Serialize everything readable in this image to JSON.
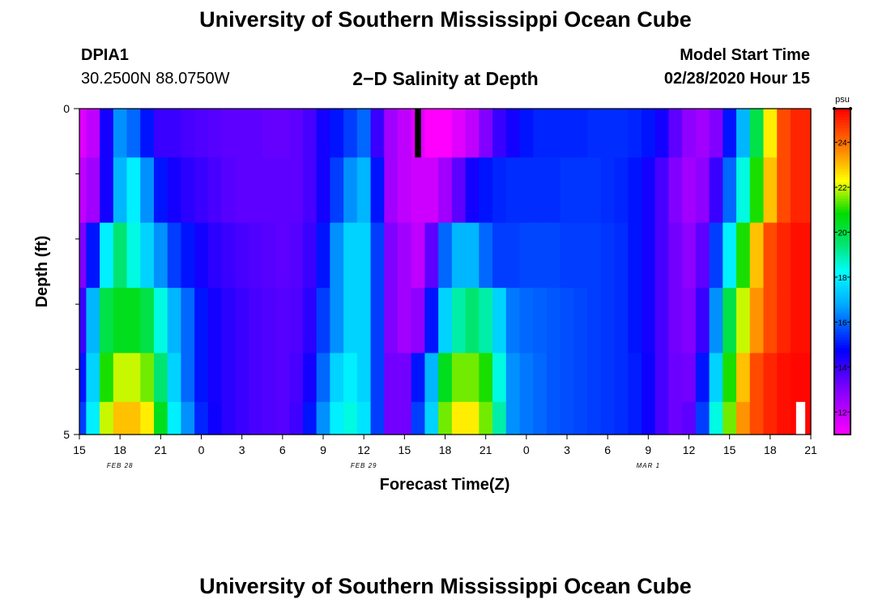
{
  "page": {
    "title_top": "University of Southern Mississippi Ocean Cube",
    "title_bottom": "University of Southern Mississippi Ocean Cube",
    "station_id": "DPIA1",
    "coords": "30.2500N 88.0750W",
    "plot_title": "2−D Salinity at Depth",
    "model_label": "Model Start Time",
    "model_time": "02/28/2020 Hour 15"
  },
  "chart_data": {
    "type": "heatmap",
    "xlabel": "Forecast Time(Z)",
    "ylabel": "Depth (ft)",
    "x_ticks": [
      "15",
      "18",
      "21",
      "0",
      "3",
      "6",
      "9",
      "12",
      "15",
      "18",
      "21",
      "0",
      "3",
      "6",
      "9",
      "12",
      "15",
      "18",
      "21"
    ],
    "date_labels": [
      {
        "text": "FEB 28",
        "at_tick": 1
      },
      {
        "text": "FEB 29",
        "at_tick": 7
      },
      {
        "text": "MAR 1",
        "at_tick": 14
      }
    ],
    "y_ticks": [
      "0",
      "5"
    ],
    "y_range": [
      0,
      5
    ],
    "x_range_hours": [
      0,
      54
    ],
    "colorbar": {
      "unit": "psu",
      "min": 11,
      "max": 25.5,
      "ticks": [
        12,
        14,
        16,
        18,
        20,
        22,
        24
      ]
    },
    "depth_rows": [
      0.25,
      1.25,
      2.25,
      3.25,
      4.25,
      4.75
    ],
    "column_hours": [
      0,
      1,
      2,
      3,
      4,
      5,
      6,
      7,
      8,
      9,
      10,
      11,
      12,
      13,
      14,
      15,
      16,
      17,
      18,
      19,
      20,
      21,
      22,
      23,
      24,
      25,
      26,
      27,
      28,
      29,
      30,
      31,
      32,
      33,
      34,
      35,
      36,
      37,
      38,
      39,
      40,
      41,
      42,
      43,
      44,
      45,
      46,
      47,
      48,
      49,
      50,
      51,
      52,
      53
    ],
    "salinity_psu": [
      [
        11.5,
        12,
        14.5,
        16.5,
        16,
        15,
        14,
        14,
        13.8,
        13.7,
        13.6,
        13.5,
        13.5,
        13.5,
        13.4,
        13.4,
        13.5,
        13.8,
        14.5,
        15,
        15.5,
        16,
        14,
        12.5,
        12,
        11.5,
        11,
        11,
        11.5,
        12,
        13,
        14,
        14.5,
        15,
        15.2,
        15.2,
        15.2,
        15.2,
        15.3,
        15.3,
        15.3,
        15.2,
        15,
        14.5,
        13.5,
        12.8,
        12.5,
        13,
        15,
        17,
        20,
        22.5,
        24.5,
        25
      ],
      [
        12,
        12.5,
        14.5,
        17,
        18,
        16.5,
        15,
        14.5,
        14.2,
        14,
        13.8,
        13.6,
        13.5,
        13.5,
        13.5,
        13.5,
        13.5,
        13.8,
        14.5,
        15.5,
        16.5,
        17,
        15,
        12.5,
        12,
        11.8,
        11.8,
        12.5,
        13.5,
        14.5,
        15,
        15.2,
        15.3,
        15.3,
        15.3,
        15.3,
        15.4,
        15.4,
        15.4,
        15.3,
        15.2,
        15,
        14.5,
        13.8,
        13,
        12.5,
        12.8,
        14,
        16,
        18.5,
        21,
        23,
        24.5,
        25
      ],
      [
        13,
        15,
        18,
        19.5,
        18.5,
        17.5,
        16.5,
        15.5,
        15,
        14.5,
        14.2,
        14,
        13.8,
        13.7,
        13.6,
        13.5,
        13.6,
        14,
        15,
        16.5,
        17.5,
        17.5,
        15.5,
        13,
        12.5,
        12,
        13.5,
        16,
        17,
        17,
        16,
        15.5,
        15.5,
        15.6,
        15.6,
        15.6,
        15.5,
        15.5,
        15.5,
        15.4,
        15.3,
        15,
        14.5,
        13.8,
        13.2,
        12.8,
        13.5,
        15.5,
        18,
        21,
        23,
        24.5,
        25,
        25.3
      ],
      [
        14,
        17,
        20,
        20.5,
        20.5,
        20,
        18.5,
        17,
        16,
        15,
        14.5,
        14.2,
        14,
        13.8,
        13.7,
        13.6,
        13.7,
        14.2,
        15.5,
        16.5,
        17.5,
        17.5,
        15.5,
        13,
        12.5,
        12.8,
        15,
        17.5,
        19,
        19.5,
        19,
        17.5,
        16.2,
        16,
        15.9,
        15.8,
        15.7,
        15.6,
        15.5,
        15.4,
        15.3,
        15,
        14.5,
        13.8,
        13.2,
        13,
        14,
        16.5,
        20,
        22,
        23.5,
        24.5,
        25,
        25.3
      ],
      [
        15,
        17.5,
        21,
        22,
        22,
        21.5,
        19.5,
        17.5,
        16,
        15,
        14.5,
        14.2,
        14,
        13.8,
        13.7,
        13.6,
        13.8,
        14.5,
        16,
        17.5,
        18,
        17.5,
        15.5,
        13.2,
        13.2,
        15,
        17,
        20.5,
        21.5,
        21.5,
        21,
        18.5,
        16.5,
        16.2,
        16,
        15.8,
        15.7,
        15.6,
        15.5,
        15.4,
        15.3,
        15.1,
        14.6,
        13.8,
        13.3,
        13.2,
        15,
        17.5,
        21,
        23,
        24.5,
        25,
        25.3,
        25.4
      ],
      [
        15.5,
        18,
        22,
        23,
        23,
        22.5,
        20.5,
        18,
        16.5,
        15.2,
        14.6,
        14.2,
        14,
        13.8,
        13.7,
        13.6,
        13.9,
        15,
        16.5,
        18,
        18.5,
        17.8,
        15.5,
        13.2,
        13.2,
        15.5,
        17.5,
        21.5,
        22.5,
        22.5,
        21.5,
        19,
        16.5,
        16.2,
        16,
        15.8,
        15.7,
        15.6,
        15.5,
        15.4,
        15.3,
        15.1,
        14.6,
        13.8,
        13.3,
        13.5,
        15.5,
        18.5,
        21.5,
        23.5,
        24.5,
        25,
        25.3,
        25.4
      ]
    ],
    "masked_cells": [
      {
        "row": 0,
        "col": 25,
        "color": "#000000"
      },
      {
        "row": 5,
        "col": 53,
        "color": "#ffffff"
      }
    ]
  }
}
